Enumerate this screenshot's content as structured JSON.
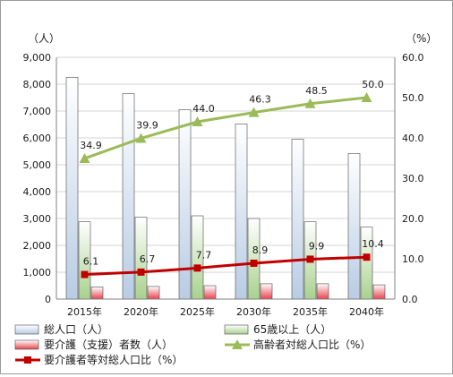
{
  "chart_data": {
    "type": "bar",
    "categories": [
      "2015年",
      "2020年",
      "2025年",
      "2030年",
      "2035年",
      "2040年"
    ],
    "left_axis": {
      "unit_label": "（人）",
      "ylim": [
        0,
        9000
      ],
      "ticks": [
        "0",
        "1,000",
        "2,000",
        "3,000",
        "4,000",
        "5,000",
        "6,000",
        "7,000",
        "8,000",
        "9,000"
      ],
      "tick_values": [
        0,
        1000,
        2000,
        3000,
        4000,
        5000,
        6000,
        7000,
        8000,
        9000
      ]
    },
    "right_axis": {
      "unit_label": "（%）",
      "ylim": [
        0,
        60
      ],
      "ticks": [
        "0.0",
        "10.0",
        "20.0",
        "30.0",
        "40.0",
        "50.0",
        "60.0"
      ],
      "tick_values": [
        0,
        10,
        20,
        30,
        40,
        50,
        60
      ]
    },
    "bar_series": [
      {
        "name": "総人口（人）",
        "values": [
          8250,
          7650,
          7050,
          6520,
          5950,
          5420
        ],
        "color": "#b8cce4"
      },
      {
        "name": "65歳以上（人）",
        "values": [
          2880,
          3050,
          3100,
          3000,
          2880,
          2680
        ],
        "color": "#a9d18e"
      },
      {
        "name": "要介護（支援）者数（人）",
        "values": [
          450,
          470,
          500,
          570,
          570,
          530
        ],
        "color": "#e8434d"
      }
    ],
    "line_series": [
      {
        "name": "高齢者対総人口比（%）",
        "values": [
          34.9,
          39.9,
          44.0,
          46.3,
          48.5,
          50.0
        ],
        "labels": [
          "34.9",
          "39.9",
          "44.0",
          "46.3",
          "48.5",
          "50.0"
        ],
        "color": "#9bbb59",
        "marker": "triangle"
      },
      {
        "name": "要介護者等対総人口比（%）",
        "values": [
          6.1,
          6.7,
          7.7,
          8.9,
          9.9,
          10.4
        ],
        "labels": [
          "6.1",
          "6.7",
          "7.7",
          "8.9",
          "9.9",
          "10.4"
        ],
        "color": "#c00000",
        "marker": "square"
      }
    ],
    "grid": true,
    "legend_position": "bottom"
  }
}
